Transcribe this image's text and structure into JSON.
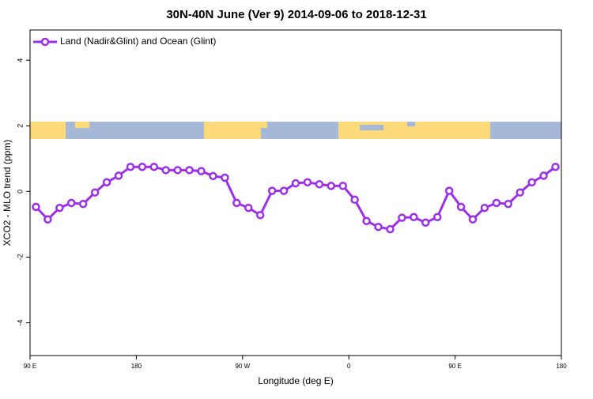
{
  "chart_data": {
    "type": "line",
    "title": "30N-40N June (Ver 9)   2014-09-06 to 2018-12-31",
    "x_label": "Longitude (deg E)",
    "y_label": "XCO2 - MLO trend (ppm)",
    "x": [
      95,
      105,
      115,
      125,
      135,
      145,
      155,
      165,
      175,
      185,
      195,
      205,
      215,
      225,
      235,
      245,
      255,
      265,
      275,
      285,
      295,
      305,
      315,
      325,
      335,
      345,
      355,
      365,
      375,
      385,
      395,
      405,
      415,
      425,
      435,
      445,
      455,
      465,
      475,
      485,
      495,
      505,
      515,
      525,
      535
    ],
    "series": [
      {
        "name": "Land (Nadir&Glint) and Ocean (Glint)",
        "color": "#9b30e6",
        "values": [
          -0.47,
          -0.85,
          -0.5,
          -0.35,
          -0.38,
          -0.03,
          0.28,
          0.48,
          0.75,
          0.75,
          0.75,
          0.65,
          0.65,
          0.65,
          0.62,
          0.47,
          0.42,
          -0.35,
          -0.5,
          -0.72,
          0.02,
          0.02,
          0.25,
          0.28,
          0.22,
          0.17,
          0.17,
          -0.25,
          -0.9,
          -1.08,
          -1.15,
          -0.8,
          -0.78,
          -0.95,
          -0.78,
          0.02,
          -0.47,
          -0.85,
          -0.5,
          -0.35,
          -0.38,
          -0.03,
          0.28,
          0.48,
          0.75
        ]
      }
    ],
    "xlim": [
      90,
      540
    ],
    "xticks": [
      {
        "value": 90,
        "label": "90 E"
      },
      {
        "value": 180,
        "label": "180"
      },
      {
        "value": 270,
        "label": "90 W"
      },
      {
        "value": 360,
        "label": "0"
      },
      {
        "value": 450,
        "label": "90 E"
      },
      {
        "value": 540,
        "label": "180"
      }
    ],
    "ylim": [
      -5,
      4.92
    ],
    "yticks": [
      -4,
      -2,
      0,
      2,
      4
    ],
    "legend": "top-left"
  }
}
